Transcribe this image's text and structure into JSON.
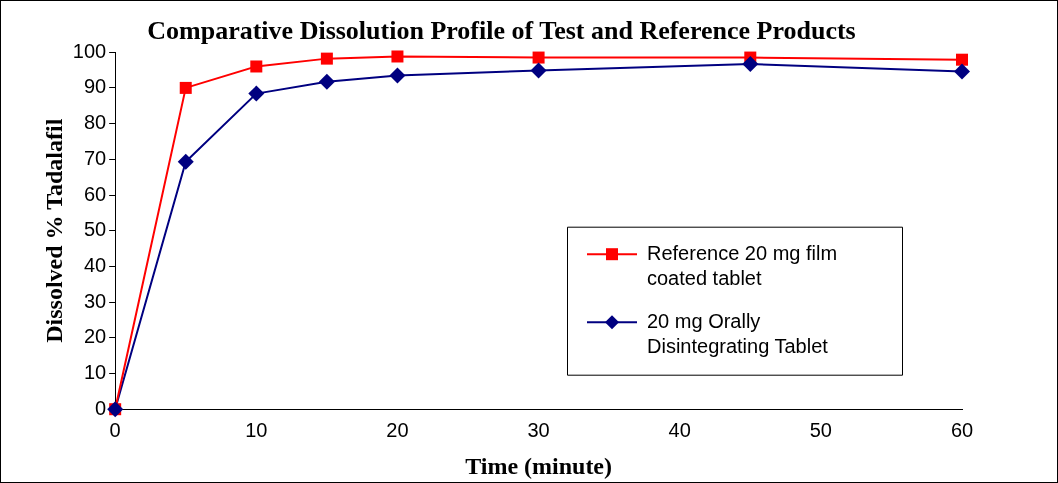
{
  "chart_data": {
    "type": "line",
    "title": "Comparative Dissolution Profile of Test and Reference Products",
    "xlabel": "Time (minute)",
    "ylabel": "Dissolved % Tadalafil",
    "x": [
      0,
      5,
      10,
      15,
      20,
      30,
      45,
      60
    ],
    "series": [
      {
        "name": "Reference 20 mg film coated tablet",
        "color": "#ff0000",
        "marker": "square",
        "values": [
          0,
          90,
          96,
          98.2,
          98.8,
          98.5,
          98.5,
          97.9
        ]
      },
      {
        "name": "20 mg Orally Disintegrating Tablet",
        "color": "#000080",
        "marker": "diamond",
        "values": [
          0,
          69.3,
          88.4,
          91.7,
          93.5,
          94.9,
          96.7,
          94.6
        ]
      }
    ],
    "xlim": [
      0,
      60
    ],
    "xticks": [
      0,
      10,
      20,
      30,
      40,
      50,
      60
    ],
    "ylim": [
      0,
      100
    ],
    "yticks": [
      0,
      10,
      20,
      30,
      40,
      50,
      60,
      70,
      80,
      90,
      100
    ],
    "grid": false,
    "legend": "right",
    "line_style": "solid"
  }
}
